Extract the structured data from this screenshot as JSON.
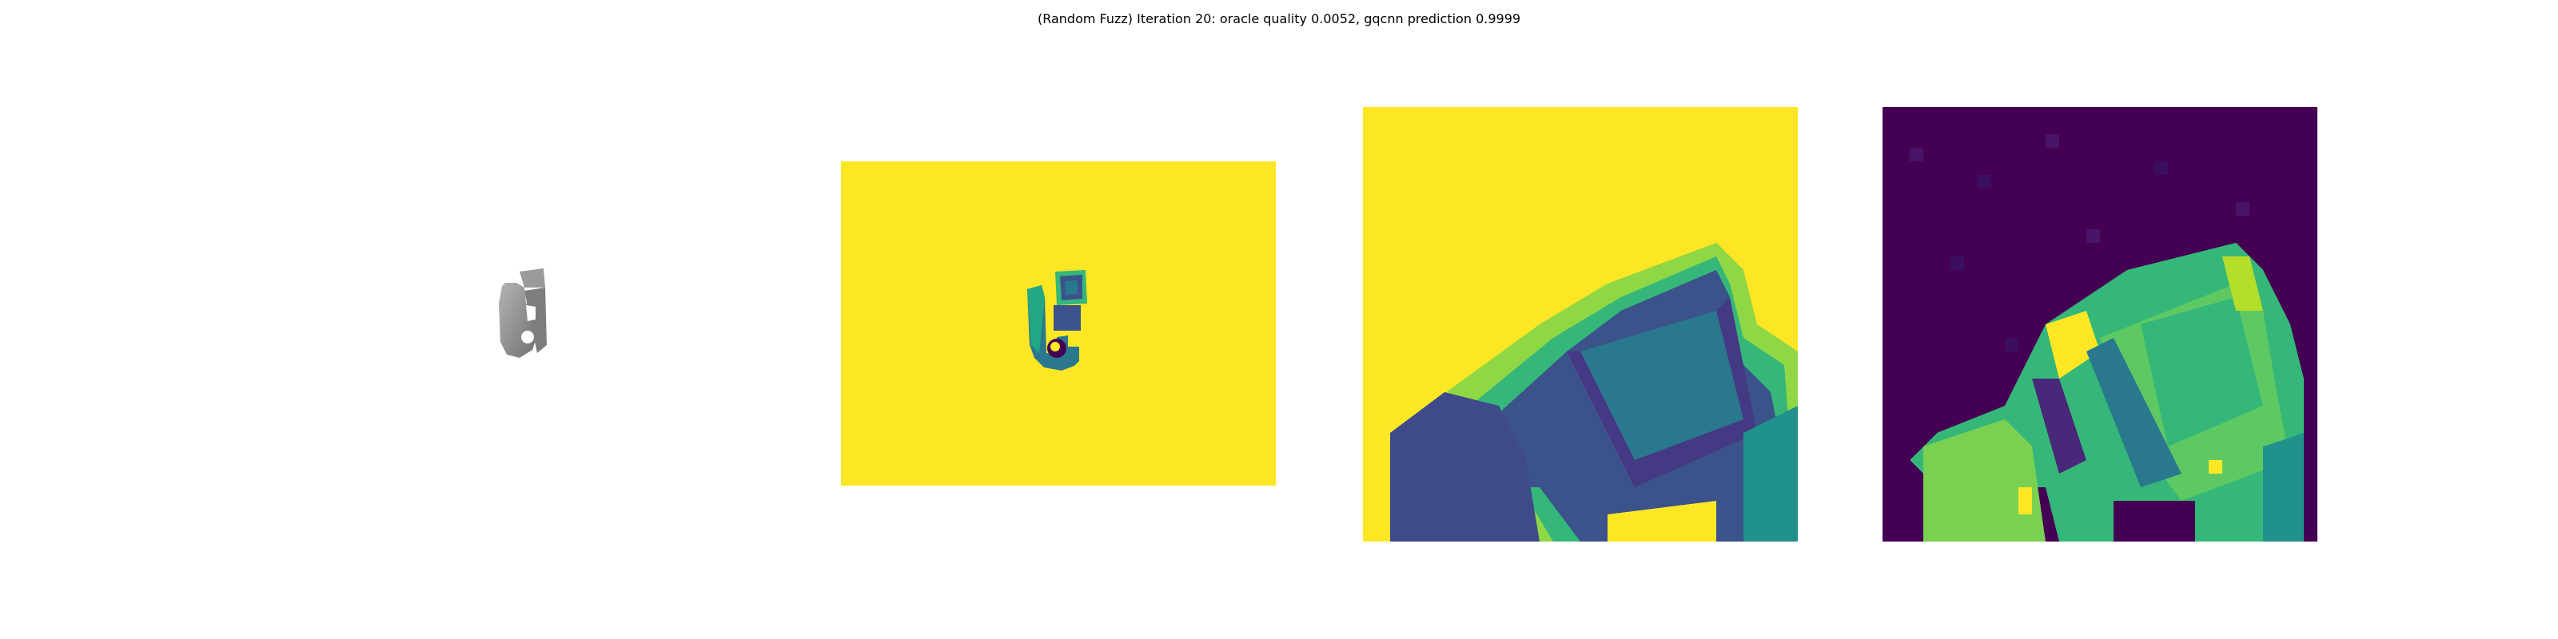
{
  "title": "(Random Fuzz) Iteration 20: oracle quality 0.0052, gqcnn prediction 0.9999",
  "panels": [
    {
      "name": "rendered-object"
    },
    {
      "name": "depth-image"
    },
    {
      "name": "depth-crop"
    },
    {
      "name": "fuzzed-depth-crop"
    }
  ],
  "colors": {
    "yellow": "#fde725",
    "dark_purple": "#440154",
    "teal": "#2a788e",
    "green": "#35b779",
    "light_green": "#6ece58",
    "object_gray": "#8a8a8a"
  }
}
